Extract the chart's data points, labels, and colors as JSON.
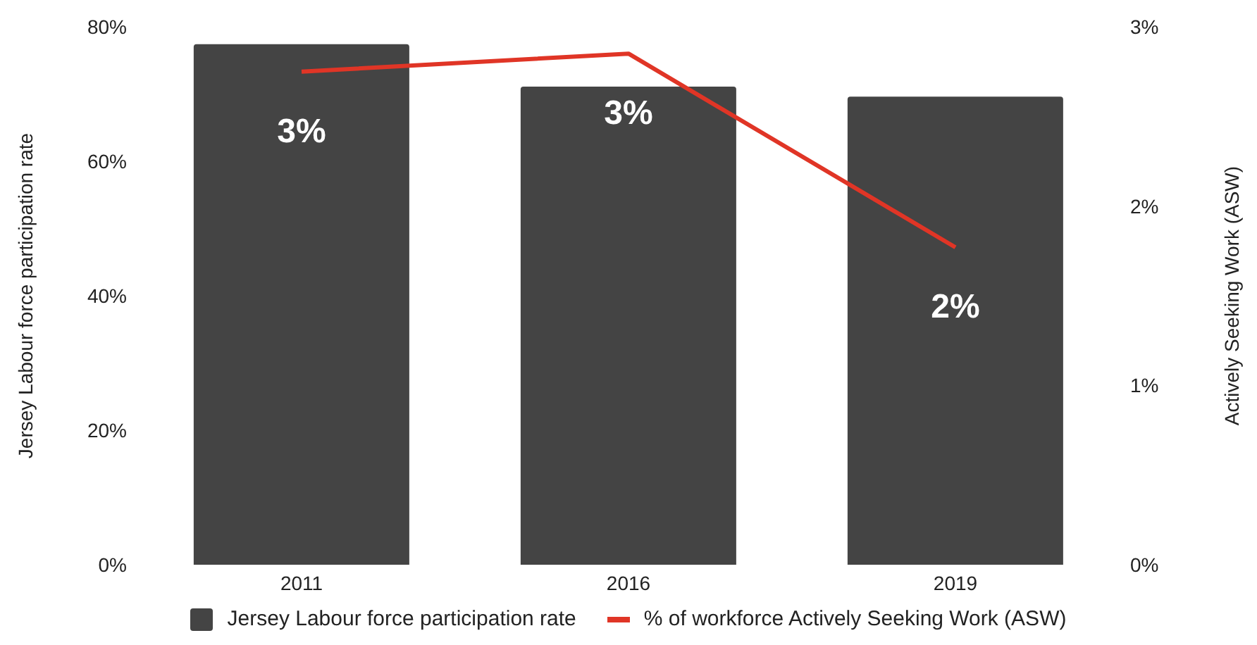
{
  "chart_data": {
    "type": "bar",
    "categories": [
      "2011",
      "2016",
      "2019"
    ],
    "ylabel": "Jersey Labour force participation rate",
    "y2label": "Actively Seeking Work (ASW)",
    "series": [
      {
        "name": "Jersey Labour force participation rate",
        "color": "#444444",
        "values": [
          77.4,
          71.1,
          69.6
        ]
      },
      {
        "name": "% of workforce Actively Seeking Work (ASW)",
        "type": "line",
        "axis": "y2",
        "color": "#e03526",
        "values": [
          2.75,
          2.85,
          1.77
        ],
        "value_labels": [
          "3%",
          "3%",
          "2%"
        ]
      }
    ],
    "ylim": [
      0,
      80
    ],
    "yticks": [
      {
        "value": 0,
        "label": "0%"
      },
      {
        "value": 20,
        "label": "20%"
      },
      {
        "value": 40,
        "label": "40%"
      },
      {
        "value": 60,
        "label": "60%"
      },
      {
        "value": 80,
        "label": "80%"
      }
    ],
    "y2lim": [
      0,
      3
    ],
    "y2ticks": [
      {
        "value": 0,
        "label": "0%"
      },
      {
        "value": 1,
        "label": "1%"
      },
      {
        "value": 2,
        "label": "2%"
      },
      {
        "value": 3,
        "label": "3%"
      }
    ],
    "legend": "bottom",
    "marker": "none"
  }
}
